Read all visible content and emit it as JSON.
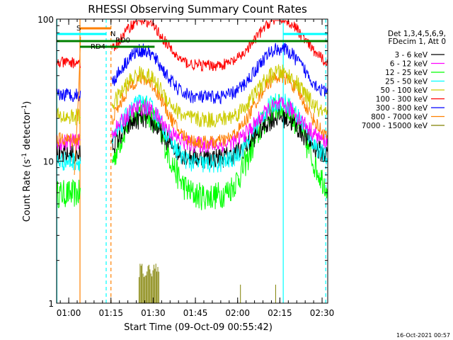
{
  "chart_data": {
    "type": "line",
    "title": "RHESSI Observing Summary Count Rates",
    "xlabel": "Start Time (09-Oct-09 00:55:42)",
    "ylabel": "Count Rate (s⁻¹ detector⁻¹)",
    "ylabel_main": "Count Rate (s",
    "ylabel_sup1": "-1",
    "ylabel_mid": " detector",
    "ylabel_sup2": "-1",
    "ylabel_end": ")",
    "yscale": "log",
    "ylim": [
      1,
      100
    ],
    "xlim_minutes": [
      55.7,
      152.0
    ],
    "x_ticks": [
      {
        "label": "01:00",
        "min": 60
      },
      {
        "label": "01:15",
        "min": 75
      },
      {
        "label": "01:30",
        "min": 90
      },
      {
        "label": "01:45",
        "min": 105
      },
      {
        "label": "02:00",
        "min": 120
      },
      {
        "label": "02:15",
        "min": 135
      },
      {
        "label": "02:30",
        "min": 150
      }
    ],
    "y_ticks": [
      {
        "label": "1",
        "value": 1
      },
      {
        "label": "10",
        "value": 10
      },
      {
        "label": "100",
        "value": 100
      }
    ],
    "legend_header": [
      "Det 1,3,4,5,6,9,",
      "FDecim 1, Att 0"
    ],
    "series": [
      {
        "name": "3 - 6 keV",
        "color": "#000000",
        "base": 10.5,
        "amp": 1.3,
        "noise": 0.15
      },
      {
        "name": "6 - 12 keV",
        "color": "#ff00ff",
        "base": 13.0,
        "amp": 1.25,
        "noise": 0.12
      },
      {
        "name": "12 - 25 keV",
        "color": "#00ff00",
        "base": 5.6,
        "amp": 2.6,
        "noise": 0.2
      },
      {
        "name": "25 - 50 keV",
        "color": "#00ffff",
        "base": 9.5,
        "amp": 1.6,
        "noise": 0.14
      },
      {
        "name": "50 - 100 keV",
        "color": "#cccc00",
        "base": 19.5,
        "amp": 1.5,
        "noise": 0.12
      },
      {
        "name": "100 - 300 keV",
        "color": "#ff0000",
        "base": 47.0,
        "amp": 1.5,
        "noise": 0.08
      },
      {
        "name": "300 - 800 keV",
        "color": "#0000ff",
        "base": 28.0,
        "amp": 1.55,
        "noise": 0.1
      },
      {
        "name": "800 - 7000 keV",
        "color": "#ff8000",
        "base": 13.5,
        "amp": 1.7,
        "noise": 0.1
      },
      {
        "name": "7000 - 15000 keV",
        "color": "#808000",
        "base": null,
        "amp": null,
        "noise": null
      }
    ],
    "flags": [
      {
        "label": "S",
        "color": "#ff8000"
      },
      {
        "label": "N",
        "color": "#00ffff"
      },
      {
        "label": "RD0",
        "color": "#008000"
      },
      {
        "label": "RD4",
        "color": "#008000"
      }
    ],
    "vertical_lines": [
      {
        "min": 55.8,
        "color": "#00ffff",
        "style": "solid"
      },
      {
        "min": 64.0,
        "color": "#ff8000",
        "style": "solid"
      },
      {
        "min": 73.3,
        "color": "#00ffff",
        "style": "dashed"
      },
      {
        "min": 75.0,
        "color": "#ff8000",
        "style": "dashed"
      },
      {
        "min": 136.2,
        "color": "#00ffff",
        "style": "solid"
      },
      {
        "min": 151.3,
        "color": "#00ffff",
        "style": "dashed"
      }
    ],
    "footer_timestamp": "16-Oct-2021 00:57",
    "grid": false,
    "legend_placement": "right"
  }
}
